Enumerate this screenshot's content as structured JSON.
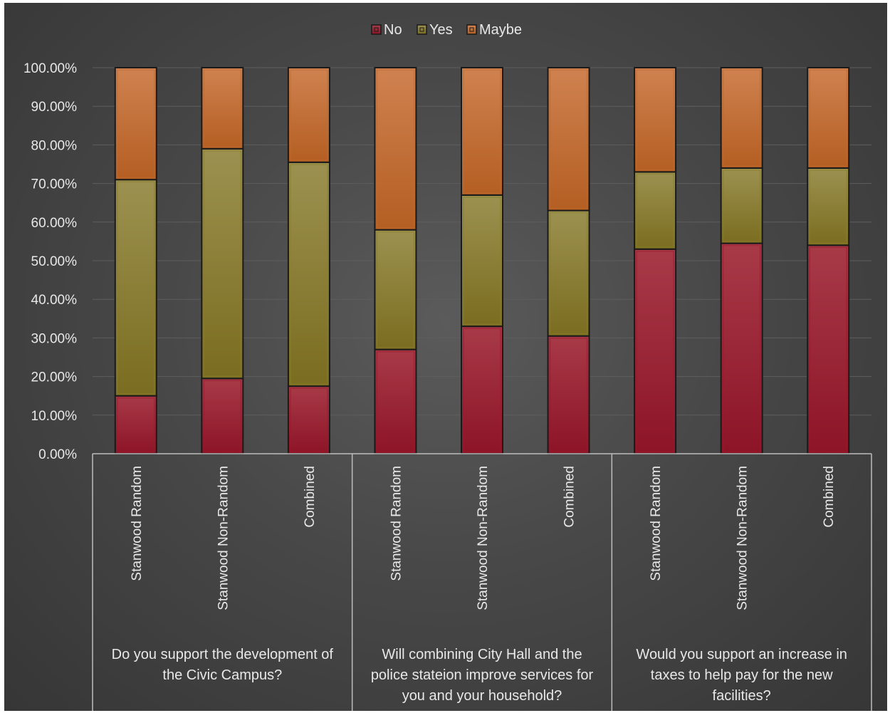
{
  "chart_data": {
    "type": "bar",
    "stacked": "percent",
    "title": "",
    "xlabel": "",
    "ylabel": "",
    "ylim": [
      0,
      100
    ],
    "y_ticks": [
      "0.00%",
      "10.00%",
      "20.00%",
      "30.00%",
      "40.00%",
      "50.00%",
      "60.00%",
      "70.00%",
      "80.00%",
      "90.00%",
      "100.00%"
    ],
    "legend_position": "top",
    "grid": true,
    "groups": [
      {
        "label": "Do you support the development of the Civic Campus?",
        "label_lines": [
          "Do you support the development of",
          "the Civic Campus?"
        ],
        "categories": [
          "Stanwood Random",
          "Stanwood Non-Random",
          "Combined"
        ]
      },
      {
        "label": "Will combining City Hall and the police stateion improve services for you and your household?",
        "label_lines": [
          "Will combining City Hall and the",
          "police stateion improve services for",
          "you and your household?"
        ],
        "categories": [
          "Stanwood Random",
          "Stanwood Non-Random",
          "Combined"
        ]
      },
      {
        "label": "Would you support an increase in taxes to help pay for the new facilities?",
        "label_lines": [
          "Would you support an increase in",
          "taxes to help pay for the new",
          "facilities?"
        ],
        "categories": [
          "Stanwood Random",
          "Stanwood Non-Random",
          "Combined"
        ]
      }
    ],
    "series": [
      {
        "name": "No",
        "color": "#9b1a2c",
        "values": [
          15,
          19.5,
          17.5,
          27,
          33,
          30.5,
          53,
          54.5,
          54
        ]
      },
      {
        "name": "Yes",
        "color": "#8a7d2c",
        "values": [
          56,
          59.5,
          58,
          31,
          34,
          32.5,
          20,
          19.5,
          20
        ]
      },
      {
        "name": "Maybe",
        "color": "#c06a30",
        "values": [
          29,
          21,
          24.5,
          42,
          33,
          37,
          27,
          26,
          26
        ]
      }
    ]
  }
}
